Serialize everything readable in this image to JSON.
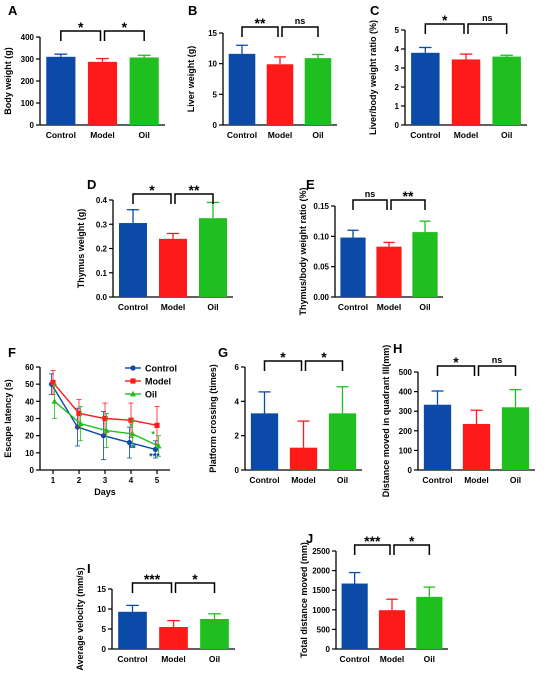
{
  "colors": {
    "control": "#0b4aa6",
    "model": "#ff1a1a",
    "oil": "#1fbf1f"
  },
  "chart_data": [
    {
      "type": "bar",
      "panel": "A",
      "ylabel": "Body weight (g)",
      "categories": [
        "Control",
        "Model",
        "Oil"
      ],
      "values": [
        310,
        287,
        307
      ],
      "errors": [
        12,
        15,
        10
      ],
      "ylim": [
        0,
        400
      ],
      "yticks": [
        0,
        100,
        200,
        300,
        400
      ],
      "yticklabels": [
        "0",
        "100",
        "200",
        "300",
        "400"
      ],
      "sig": [
        {
          "from": 0,
          "to": 1,
          "label": "*"
        },
        {
          "from": 1,
          "to": 2,
          "label": "*"
        }
      ]
    },
    {
      "type": "bar",
      "panel": "B",
      "ylabel": "Liver weight (g)",
      "categories": [
        "Control",
        "Model",
        "Oil"
      ],
      "values": [
        11.6,
        9.9,
        10.9
      ],
      "errors": [
        1.4,
        1.2,
        0.6
      ],
      "ylim": [
        0,
        15
      ],
      "yticks": [
        0,
        5,
        10,
        15
      ],
      "yticklabels": [
        "0",
        "5",
        "10",
        "15"
      ],
      "sig": [
        {
          "from": 0,
          "to": 1,
          "label": "**"
        },
        {
          "from": 1,
          "to": 2,
          "label": "ns"
        }
      ]
    },
    {
      "type": "bar",
      "panel": "C",
      "ylabel": "Liver/body weight ratio (%)",
      "categories": [
        "Control",
        "Model",
        "Oil"
      ],
      "values": [
        3.8,
        3.45,
        3.6
      ],
      "errors": [
        0.28,
        0.28,
        0.07
      ],
      "ylim": [
        0,
        5
      ],
      "yticks": [
        0,
        1,
        2,
        3,
        4,
        5
      ],
      "yticklabels": [
        "0",
        "1",
        "2",
        "3",
        "4",
        "5"
      ],
      "sig": [
        {
          "from": 0,
          "to": 1,
          "label": "*"
        },
        {
          "from": 1,
          "to": 2,
          "label": "ns"
        }
      ]
    },
    {
      "type": "bar",
      "panel": "D",
      "ylabel": "Thymus weight (g)",
      "categories": [
        "Control",
        "Model",
        "Oil"
      ],
      "values": [
        0.305,
        0.24,
        0.325
      ],
      "errors": [
        0.055,
        0.022,
        0.065
      ],
      "ylim": [
        0,
        0.4
      ],
      "yticks": [
        0,
        0.1,
        0.2,
        0.3,
        0.4
      ],
      "yticklabels": [
        "0.0",
        "0.1",
        "0.2",
        "0.3",
        "0.4"
      ],
      "sig": [
        {
          "from": 0,
          "to": 1,
          "label": "*"
        },
        {
          "from": 1,
          "to": 2,
          "label": "**"
        }
      ]
    },
    {
      "type": "bar",
      "panel": "E",
      "ylabel": "Thymus/body weight ratio (%)",
      "categories": [
        "Control",
        "Model",
        "Oil"
      ],
      "values": [
        0.098,
        0.083,
        0.107
      ],
      "errors": [
        0.012,
        0.007,
        0.018
      ],
      "ylim": [
        0,
        0.15
      ],
      "yticks": [
        0,
        0.05,
        0.1,
        0.15
      ],
      "yticklabels": [
        "0.00",
        "0.05",
        "0.10",
        "0.15"
      ],
      "sig": [
        {
          "from": 0,
          "to": 1,
          "label": "ns"
        },
        {
          "from": 1,
          "to": 2,
          "label": "**"
        }
      ]
    },
    {
      "type": "line",
      "panel": "F",
      "ylabel": "Escape latency (s)",
      "xlabel": "Days",
      "x": [
        1,
        2,
        3,
        4,
        5
      ],
      "xlim": [
        0.5,
        5.5
      ],
      "xticks": [
        1,
        2,
        3,
        4,
        5
      ],
      "xticklabels": [
        "1",
        "2",
        "3",
        "4",
        "5"
      ],
      "ylim": [
        0,
        60
      ],
      "yticks": [
        0,
        10,
        20,
        30,
        40,
        50,
        60
      ],
      "yticklabels": [
        "0",
        "10",
        "20",
        "30",
        "40",
        "50",
        "60"
      ],
      "legend": "top-right",
      "series": [
        {
          "name": "Control",
          "color_key": "control",
          "marker": "circle",
          "values": [
            50,
            25,
            20,
            16,
            12
          ],
          "errors": [
            6,
            11,
            14,
            9,
            5
          ]
        },
        {
          "name": "Model",
          "color_key": "model",
          "marker": "square",
          "values": [
            51,
            33,
            30,
            29,
            26
          ],
          "errors": [
            7,
            8,
            9,
            10,
            11
          ]
        },
        {
          "name": "Oil",
          "color_key": "oil",
          "marker": "triangle",
          "values": [
            40,
            27,
            23,
            21,
            14
          ],
          "errors": [
            10,
            10,
            10,
            8,
            6
          ]
        }
      ],
      "annotations": [
        {
          "x": 4,
          "y": 24,
          "label": "*",
          "color_key": "oil"
        },
        {
          "x": 4.05,
          "y": 11,
          "label": "**",
          "color_key": "control"
        },
        {
          "x": 4.85,
          "y": 19,
          "label": "*",
          "color_key": "oil"
        },
        {
          "x": 4.9,
          "y": 6,
          "label": "***",
          "color_key": "control"
        }
      ]
    },
    {
      "type": "bar",
      "panel": "G",
      "ylabel": "Platform crossing (times)",
      "categories": [
        "Control",
        "Model",
        "Oil"
      ],
      "values": [
        3.3,
        1.3,
        3.3
      ],
      "errors": [
        1.25,
        1.55,
        1.55
      ],
      "ylim": [
        0,
        6
      ],
      "yticks": [
        0,
        2,
        4,
        6
      ],
      "yticklabels": [
        "0",
        "2",
        "4",
        "6"
      ],
      "sig": [
        {
          "from": 0,
          "to": 1,
          "label": "*"
        },
        {
          "from": 1,
          "to": 2,
          "label": "*"
        }
      ]
    },
    {
      "type": "bar",
      "panel": "H",
      "ylabel": "Distance moved in quadrant III(mm)",
      "categories": [
        "Control",
        "Model",
        "Oil"
      ],
      "values": [
        333,
        235,
        320
      ],
      "errors": [
        70,
        70,
        90
      ],
      "ylim": [
        0,
        500
      ],
      "yticks": [
        0,
        100,
        200,
        300,
        400,
        500
      ],
      "yticklabels": [
        "0",
        "100",
        "200",
        "300",
        "400",
        "500"
      ],
      "sig": [
        {
          "from": 0,
          "to": 1,
          "label": "*"
        },
        {
          "from": 1,
          "to": 2,
          "label": "ns"
        }
      ]
    },
    {
      "type": "bar",
      "panel": "I",
      "ylabel": "Average velocity (mm/s)",
      "categories": [
        "Control",
        "Model",
        "Oil"
      ],
      "values": [
        9.3,
        5.5,
        7.5
      ],
      "errors": [
        1.6,
        1.6,
        1.3
      ],
      "ylim": [
        0,
        15
      ],
      "yticks": [
        0,
        5,
        10,
        15
      ],
      "yticklabels": [
        "0",
        "5",
        "10",
        "15"
      ],
      "sig": [
        {
          "from": 0,
          "to": 1,
          "label": "***"
        },
        {
          "from": 1,
          "to": 2,
          "label": "*"
        }
      ]
    },
    {
      "type": "bar",
      "panel": "J",
      "ylabel": "Total distance moved (mm)",
      "categories": [
        "Control",
        "Model",
        "Oil"
      ],
      "values": [
        1670,
        990,
        1330
      ],
      "errors": [
        280,
        280,
        250
      ],
      "ylim": [
        0,
        2500
      ],
      "yticks": [
        0,
        500,
        1000,
        1500,
        2000,
        2500
      ],
      "yticklabels": [
        "0",
        "500",
        "1000",
        "1500",
        "2000",
        "2500"
      ],
      "sig": [
        {
          "from": 0,
          "to": 1,
          "label": "***"
        },
        {
          "from": 1,
          "to": 2,
          "label": "*"
        }
      ]
    }
  ]
}
